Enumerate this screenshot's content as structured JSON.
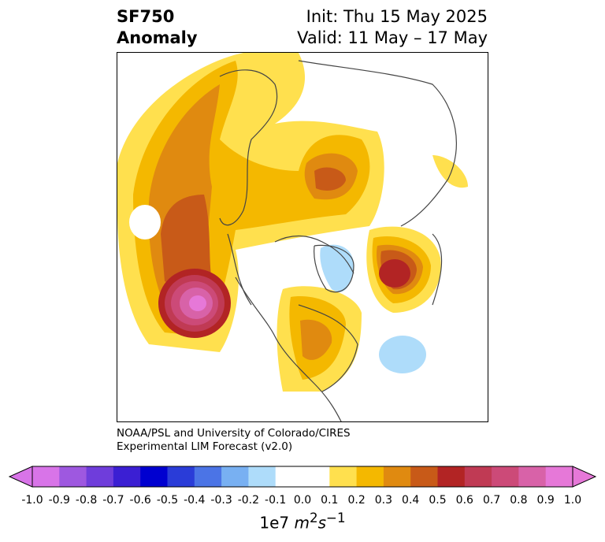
{
  "title": {
    "variable": "SF750",
    "kind": "Anomaly",
    "init": "Init: Thu 15 May 2025",
    "valid": "Valid: 11 May – 17 May"
  },
  "credit": {
    "line1": "NOAA/PSL and University of Colorado/CIRES",
    "line2": "Experimental LIM Forecast (v2.0)"
  },
  "colorbar": {
    "ticks": [
      "-1.0",
      "-0.9",
      "-0.8",
      "-0.7",
      "-0.6",
      "-0.5",
      "-0.4",
      "-0.3",
      "-0.2",
      "-0.1",
      "0.0",
      "0.1",
      "0.2",
      "0.3",
      "0.4",
      "0.5",
      "0.6",
      "0.7",
      "0.8",
      "0.9",
      "1.0"
    ],
    "colors": [
      "#d874e8",
      "#9e58e0",
      "#6f3ddb",
      "#3b1fd3",
      "#0000d0",
      "#2a3cd8",
      "#4b74e6",
      "#78b0f2",
      "#aedcfa",
      "#ffffff",
      "#ffffff",
      "#ffe04e",
      "#f4b800",
      "#e08a10",
      "#c85a18",
      "#b22424",
      "#c03a54",
      "#cc4a78",
      "#d862a8",
      "#e678d8"
    ],
    "min_extension_color": "#d874e8",
    "max_extension_color": "#e678d8",
    "unit_base": "1e7",
    "unit_m": "m",
    "unit_m_exp": "2",
    "unit_s": "s",
    "unit_s_exp": "−1"
  }
}
